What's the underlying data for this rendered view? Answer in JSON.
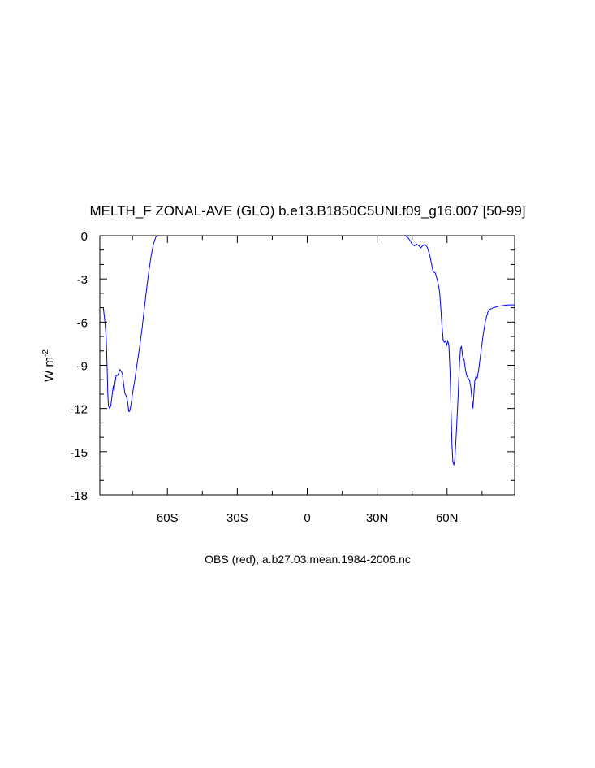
{
  "chart_data": {
    "type": "line",
    "title": "MELTH_F ZONAL-AVE (GLO) b.e13.B1850C5UNI.f09_g16.007 [50-99]",
    "xlabel": "OBS (red), a.b27.03.mean.1984-2006.nc",
    "ylabel_main": "W m",
    "ylabel_sup": "-2",
    "xlim": [
      -89,
      89
    ],
    "ylim": [
      -18,
      0
    ],
    "grid": false,
    "x_ticks": [
      {
        "value": -60,
        "label": "60S"
      },
      {
        "value": -30,
        "label": "30S"
      },
      {
        "value": 0,
        "label": "0"
      },
      {
        "value": 30,
        "label": "30N"
      },
      {
        "value": 60,
        "label": "60N"
      }
    ],
    "y_ticks": [
      {
        "value": 0,
        "label": "0"
      },
      {
        "value": -3,
        "label": "-3"
      },
      {
        "value": -6,
        "label": "-6"
      },
      {
        "value": -9,
        "label": "-9"
      },
      {
        "value": -12,
        "label": "-12"
      },
      {
        "value": -15,
        "label": "-15"
      },
      {
        "value": -18,
        "label": "-18"
      }
    ],
    "series": [
      {
        "color": "#0000ff",
        "segments": [
          [
            [
              -87.5,
              -5.0
            ],
            [
              -86.8,
              -6.0
            ],
            [
              -86.3,
              -7.0
            ],
            [
              -85.9,
              -9.0
            ],
            [
              -85.6,
              -11.0
            ],
            [
              -85.3,
              -11.8
            ],
            [
              -84.8,
              -12.0
            ],
            [
              -84.3,
              -11.8
            ],
            [
              -83.6,
              -10.9
            ],
            [
              -83.2,
              -10.4
            ],
            [
              -82.9,
              -10.8
            ],
            [
              -82.6,
              -10.3
            ],
            [
              -82.0,
              -9.7
            ],
            [
              -81.3,
              -9.7
            ],
            [
              -80.8,
              -9.5
            ],
            [
              -80.4,
              -9.3
            ],
            [
              -79.8,
              -9.4
            ],
            [
              -79.3,
              -9.6
            ],
            [
              -78.8,
              -10.3
            ],
            [
              -78.3,
              -10.9
            ],
            [
              -77.5,
              -11.2
            ],
            [
              -77.0,
              -11.6
            ],
            [
              -76.6,
              -12.2
            ],
            [
              -76.2,
              -12.2
            ],
            [
              -75.6,
              -11.7
            ],
            [
              -75.0,
              -11.0
            ],
            [
              -74.0,
              -10.0
            ],
            [
              -73.0,
              -8.9
            ],
            [
              -72.0,
              -7.8
            ],
            [
              -71.0,
              -6.6
            ],
            [
              -70.0,
              -5.2
            ],
            [
              -69.0,
              -3.8
            ],
            [
              -68.0,
              -2.5
            ],
            [
              -67.0,
              -1.4
            ],
            [
              -66.0,
              -0.6
            ],
            [
              -65.0,
              -0.1
            ],
            [
              -64.0,
              0.0
            ]
          ],
          [
            [
              42.0,
              0.0
            ],
            [
              43.0,
              -0.1
            ],
            [
              44.0,
              -0.3
            ],
            [
              45.0,
              -0.6
            ],
            [
              46.0,
              -0.7
            ],
            [
              47.0,
              -0.6
            ],
            [
              48.0,
              -0.7
            ],
            [
              48.7,
              -0.85
            ],
            [
              49.5,
              -0.7
            ],
            [
              50.5,
              -0.6
            ],
            [
              51.5,
              -0.8
            ],
            [
              52.5,
              -1.3
            ],
            [
              53.3,
              -1.9
            ],
            [
              54.0,
              -2.5
            ],
            [
              55.0,
              -2.6
            ],
            [
              56.0,
              -3.2
            ],
            [
              56.8,
              -3.9
            ],
            [
              57.3,
              -5.0
            ],
            [
              57.8,
              -6.2
            ],
            [
              58.3,
              -7.2
            ],
            [
              58.8,
              -7.4
            ],
            [
              59.3,
              -7.3
            ],
            [
              59.8,
              -7.6
            ],
            [
              60.3,
              -7.3
            ],
            [
              60.8,
              -7.6
            ],
            [
              61.3,
              -9.5
            ],
            [
              61.7,
              -12.0
            ],
            [
              62.1,
              -14.5
            ],
            [
              62.5,
              -15.7
            ],
            [
              62.9,
              -15.9
            ],
            [
              63.3,
              -15.6
            ],
            [
              63.7,
              -14.5
            ],
            [
              64.2,
              -13.0
            ],
            [
              64.8,
              -11.0
            ],
            [
              65.3,
              -8.9
            ],
            [
              65.8,
              -7.8
            ],
            [
              66.2,
              -7.7
            ],
            [
              66.7,
              -8.4
            ],
            [
              67.3,
              -8.6
            ],
            [
              67.9,
              -9.3
            ],
            [
              68.4,
              -9.7
            ],
            [
              69.0,
              -9.9
            ],
            [
              69.6,
              -10.0
            ],
            [
              70.1,
              -10.4
            ],
            [
              70.6,
              -11.2
            ],
            [
              71.1,
              -12.0
            ],
            [
              71.5,
              -11.0
            ],
            [
              71.9,
              -10.1
            ],
            [
              72.4,
              -9.8
            ],
            [
              72.9,
              -9.9
            ],
            [
              73.5,
              -9.4
            ],
            [
              74.5,
              -8.1
            ],
            [
              75.5,
              -6.9
            ],
            [
              76.5,
              -5.9
            ],
            [
              77.5,
              -5.3
            ],
            [
              78.5,
              -5.1
            ],
            [
              80.0,
              -5.0
            ],
            [
              82.0,
              -4.9
            ],
            [
              84.0,
              -4.85
            ],
            [
              86.0,
              -4.8
            ],
            [
              87.5,
              -4.8
            ],
            [
              89.0,
              -4.8
            ]
          ]
        ]
      }
    ]
  }
}
